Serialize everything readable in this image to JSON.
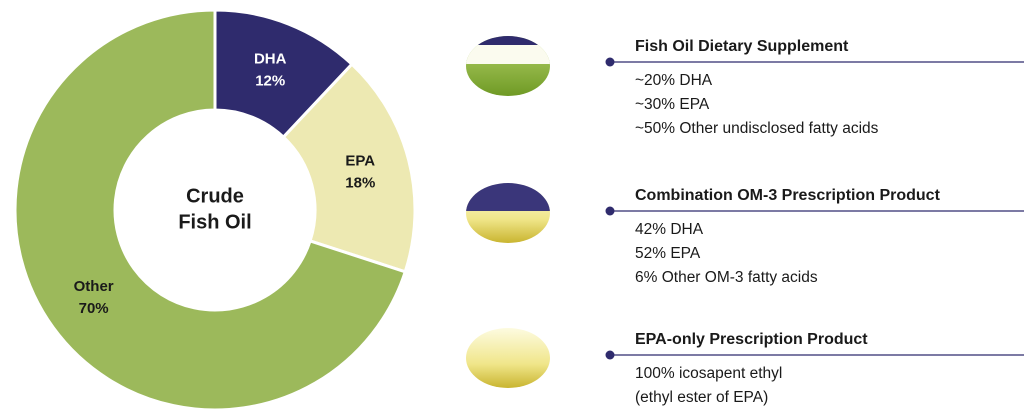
{
  "chart_data": {
    "type": "donut",
    "center_label": [
      "Crude",
      "Fish Oil"
    ],
    "categories": [
      "DHA",
      "EPA",
      "Other"
    ],
    "values": [
      12,
      18,
      70
    ],
    "value_labels": [
      "12%",
      "18%",
      "70%"
    ],
    "colors": [
      "#2f2b6d",
      "#ede9b2",
      "#9cb95b"
    ],
    "label_colors": [
      "#ffffff",
      "#1a1a1a",
      "#1a1a1a"
    ]
  },
  "products": [
    {
      "title": "Fish Oil Dietary Supplement",
      "lines": [
        "~20% DHA",
        "~30% EPA",
        "~50% Other undisclosed fatty acids"
      ]
    },
    {
      "title": "Combination OM-3 Prescription Product",
      "lines": [
        "42% DHA",
        "52% EPA",
        "6% Other OM-3 fatty acids"
      ]
    },
    {
      "title": "EPA-only Prescription Product",
      "lines": [
        "100% icosapent ethyl",
        "(ethyl ester of EPA)"
      ]
    }
  ]
}
